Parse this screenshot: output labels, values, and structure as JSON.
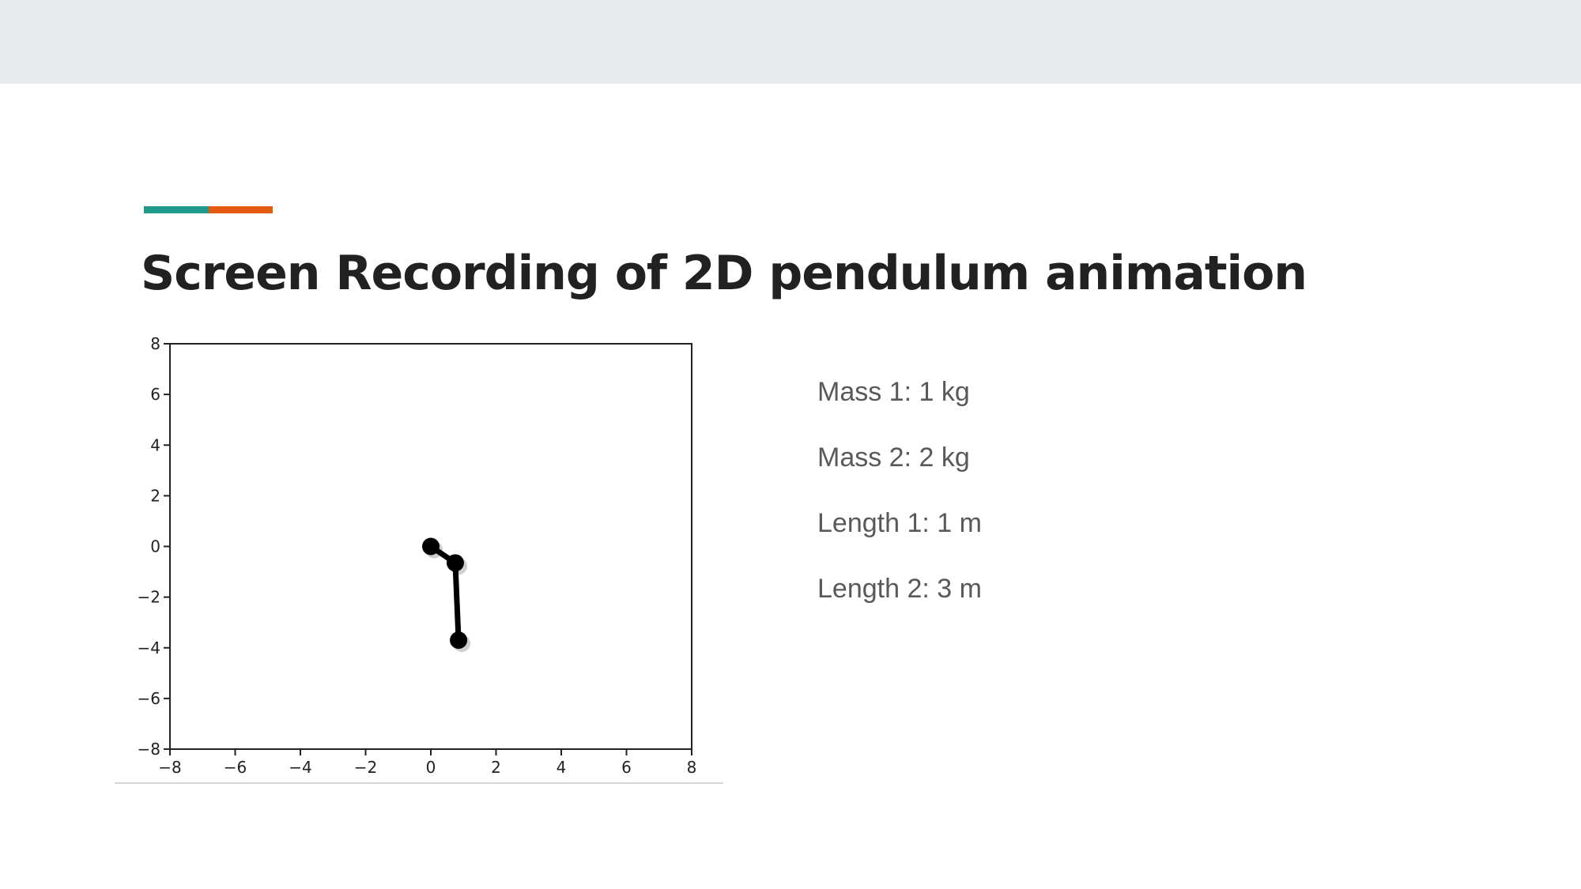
{
  "slide": {
    "title": "Screen Recording of 2D pendulum animation",
    "accent_colors": {
      "teal": "#1f9a8a",
      "orange": "#e35b0e"
    },
    "background_band_color": "#e8ebed"
  },
  "parameters": [
    {
      "text": "Mass 1: 1 kg"
    },
    {
      "text": "Mass 2: 2 kg"
    },
    {
      "text": "Length 1: 1 m"
    },
    {
      "text": "Length 2: 3 m"
    }
  ],
  "chart_data": {
    "type": "scatter",
    "title": "",
    "xlabel": "",
    "ylabel": "",
    "xlim": [
      -8,
      8
    ],
    "ylim": [
      -8,
      8
    ],
    "x_ticks": [
      -8,
      -6,
      -4,
      -2,
      0,
      2,
      4,
      6,
      8
    ],
    "y_ticks": [
      8,
      6,
      4,
      2,
      0,
      -2,
      -4,
      -6,
      -8
    ],
    "grid": false,
    "pendulum": {
      "pivot": {
        "x": 0.0,
        "y": 0.0
      },
      "bob1": {
        "x": 0.75,
        "y": -0.65
      },
      "bob2": {
        "x": 0.85,
        "y": -3.7
      }
    },
    "rod_color": "#000000",
    "bob_color": "#000000"
  }
}
